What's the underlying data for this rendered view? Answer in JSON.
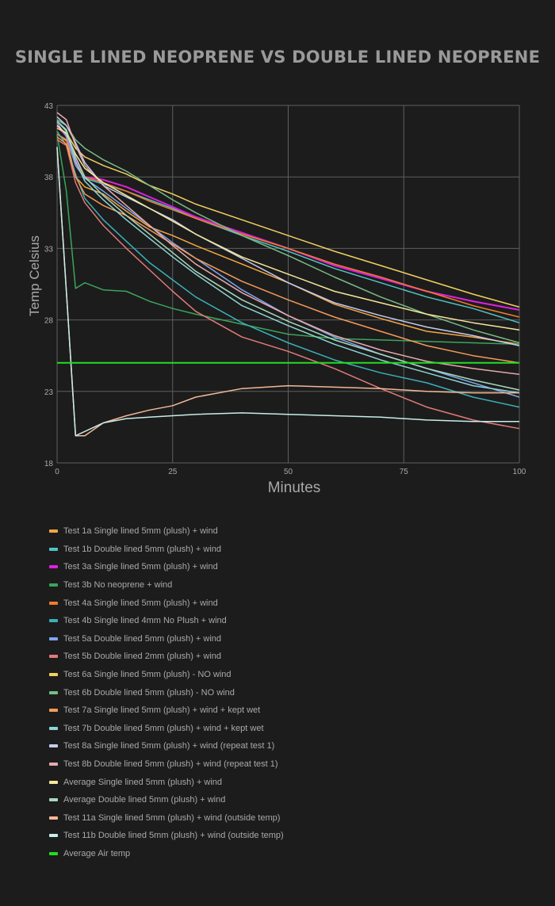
{
  "chart_data": {
    "type": "line",
    "title": "SINGLE LINED NEOPRENE VS DOUBLE LINED NEOPRENE",
    "xlabel": "Minutes",
    "ylabel": "Temp Celsius",
    "xlim": [
      0,
      100
    ],
    "ylim": [
      18,
      43
    ],
    "xticks": [
      0,
      25,
      50,
      75,
      100
    ],
    "yticks": [
      18,
      23,
      28,
      33,
      38,
      43
    ],
    "grid": true,
    "legend_position": "bottom",
    "x": [
      0,
      2,
      4,
      6,
      10,
      15,
      20,
      25,
      30,
      40,
      50,
      60,
      70,
      80,
      90,
      100
    ],
    "series": [
      {
        "name": "Test 1a Single lined 5mm (plush) + wind",
        "color": "#f5a742",
        "values": [
          41.0,
          40.6,
          38.0,
          37.3,
          36.8,
          35.6,
          34.5,
          33.9,
          33.2,
          31.9,
          30.6,
          29.1,
          28.1,
          27.2,
          26.8,
          26.3
        ]
      },
      {
        "name": "Test 1b Double lined 5mm (plush) + wind",
        "color": "#4fc4c4",
        "values": [
          41.6,
          41.0,
          39.0,
          37.9,
          37.5,
          37.0,
          36.4,
          35.8,
          35.1,
          33.9,
          32.8,
          31.6,
          30.6,
          29.6,
          28.8,
          27.8
        ]
      },
      {
        "name": "Test 3a Single lined 5mm (plush) + wind",
        "color": "#e020e0",
        "values": [
          41.5,
          40.9,
          39.2,
          38.0,
          37.8,
          37.3,
          36.6,
          35.9,
          35.2,
          34.1,
          33.0,
          31.8,
          30.9,
          30.0,
          29.3,
          28.7
        ]
      },
      {
        "name": "Test 3b No neoprene + wind",
        "color": "#3aa55a",
        "values": [
          41.0,
          37.0,
          30.2,
          30.6,
          30.1,
          30.0,
          29.3,
          28.8,
          28.4,
          27.7,
          27.0,
          26.7,
          26.6,
          26.5,
          26.4,
          26.3
        ]
      },
      {
        "name": "Test 4a Single lined 5mm (plush) + wind",
        "color": "#f07c2a",
        "values": [
          41.0,
          40.5,
          39.0,
          38.0,
          37.6,
          37.0,
          36.3,
          35.7,
          35.1,
          34.0,
          33.0,
          31.9,
          31.0,
          30.0,
          29.0,
          28.2
        ]
      },
      {
        "name": "Test 4b Single lined 4mm No Plush + wind",
        "color": "#3ab0b8",
        "values": [
          41.2,
          40.2,
          38.2,
          36.5,
          35.0,
          33.5,
          32.0,
          30.8,
          29.6,
          27.8,
          26.4,
          25.2,
          24.3,
          23.6,
          22.6,
          21.9
        ]
      },
      {
        "name": "Test  5a Double lined 5mm (plush) + wind",
        "color": "#7fa4f0",
        "values": [
          41.8,
          40.8,
          38.8,
          37.9,
          37.0,
          35.8,
          34.6,
          33.4,
          32.3,
          30.1,
          28.3,
          26.8,
          25.6,
          24.6,
          23.6,
          22.6
        ]
      },
      {
        "name": "Test 5b Double lined 2mm (plush) + wind",
        "color": "#e27a7a",
        "values": [
          40.6,
          40.2,
          37.6,
          36.2,
          34.6,
          33.0,
          31.5,
          30.0,
          28.6,
          26.8,
          25.8,
          24.6,
          23.2,
          21.9,
          21.0,
          20.4
        ]
      },
      {
        "name": "Test 6a Single lined 5mm (plush) - NO wind",
        "color": "#f2d060",
        "values": [
          41.4,
          41.1,
          40.0,
          39.4,
          38.8,
          38.2,
          37.4,
          36.8,
          36.1,
          35.0,
          33.9,
          32.8,
          31.8,
          30.8,
          29.8,
          28.9
        ]
      },
      {
        "name": "Test 6b Double lined 5mm (plush) - NO wind",
        "color": "#78bc88",
        "values": [
          42.0,
          41.6,
          40.6,
          40.0,
          39.2,
          38.4,
          37.4,
          36.4,
          35.5,
          33.9,
          32.5,
          31.0,
          29.6,
          28.4,
          27.3,
          26.4
        ]
      },
      {
        "name": "Test 7a Single lined 5mm (plush) + wind + kept wet",
        "color": "#f59a58",
        "values": [
          40.8,
          40.3,
          38.0,
          36.8,
          36.0,
          35.3,
          34.3,
          33.3,
          32.3,
          30.7,
          29.4,
          28.2,
          27.2,
          26.2,
          25.5,
          25.0
        ]
      },
      {
        "name": "Test 7b Double lined 5mm (plush) + wind + kept wet",
        "color": "#8ed4d4",
        "values": [
          41.9,
          41.2,
          39.1,
          37.7,
          36.4,
          35.0,
          33.7,
          32.4,
          31.2,
          29.0,
          27.6,
          26.3,
          25.2,
          24.3,
          23.4,
          22.9
        ]
      },
      {
        "name": "Test 8a Single lined 5mm (plush) + wind (repeat test 1)",
        "color": "#c4ccf0",
        "values": [
          42.2,
          41.6,
          40.4,
          39.0,
          37.4,
          36.6,
          35.8,
          35.0,
          34.0,
          32.3,
          30.6,
          29.2,
          28.3,
          27.5,
          26.9,
          26.2
        ]
      },
      {
        "name": "Test 8b Double lined 5mm (plush) + wind (repeat test 1)",
        "color": "#e8aaaa",
        "values": [
          42.5,
          42.0,
          40.2,
          38.8,
          37.4,
          36.0,
          34.6,
          33.2,
          31.9,
          29.9,
          28.3,
          26.9,
          25.9,
          25.1,
          24.6,
          24.2
        ]
      },
      {
        "name": "Average Single lined 5mm (plush) + wind",
        "color": "#f5e89a",
        "values": [
          41.6,
          41.0,
          39.6,
          38.6,
          37.6,
          36.7,
          35.8,
          34.9,
          34.0,
          32.4,
          31.2,
          30.0,
          29.2,
          28.4,
          27.8,
          27.3
        ]
      },
      {
        "name": "Average Double lined 5mm (plush) + wind",
        "color": "#a8d8bc",
        "values": [
          41.9,
          41.3,
          39.4,
          38.0,
          36.7,
          35.3,
          34.0,
          32.7,
          31.4,
          29.4,
          27.9,
          26.6,
          25.6,
          24.6,
          23.8,
          23.1
        ]
      },
      {
        "name": "Test 11a Single lined 5mm (plush) + wind (outside temp)",
        "color": "#f2b896",
        "values": [
          40.0,
          30.0,
          19.9,
          19.9,
          20.8,
          21.3,
          21.7,
          22.0,
          22.6,
          23.2,
          23.4,
          23.3,
          23.2,
          23.0,
          22.9,
          22.9
        ]
      },
      {
        "name": "Test 11b Double lined 5mm (plush) + wind (outside temp)",
        "color": "#c8ece8",
        "values": [
          40.1,
          30.0,
          19.9,
          20.2,
          20.8,
          21.1,
          21.2,
          21.3,
          21.4,
          21.5,
          21.4,
          21.3,
          21.2,
          21.0,
          20.9,
          20.9
        ]
      },
      {
        "name": "Average Air temp",
        "color": "#22dd22",
        "values": [
          25.0,
          25.0,
          25.0,
          25.0,
          25.0,
          25.0,
          25.0,
          25.0,
          25.0,
          25.0,
          25.0,
          25.0,
          25.0,
          25.0,
          25.0,
          25.0
        ]
      }
    ]
  }
}
